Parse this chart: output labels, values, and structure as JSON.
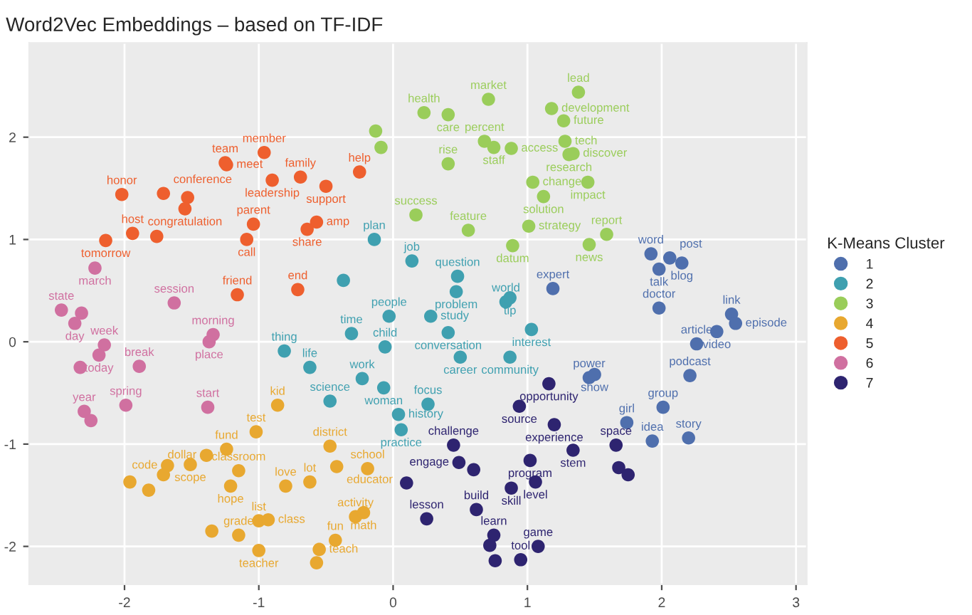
{
  "chart_data": {
    "type": "scatter",
    "title": "Word2Vec Embeddings – based on TF-IDF",
    "legend_title": "K-Means Cluster",
    "legend": "right",
    "grid": true,
    "marker": "circle",
    "xlim": [
      -2.71,
      3.08
    ],
    "ylim": [
      -2.37,
      2.92
    ],
    "xticks": [
      -2,
      -1,
      0,
      1,
      2,
      3
    ],
    "yticks": [
      -2,
      -1,
      0,
      1,
      2
    ],
    "series": [
      {
        "name": "1",
        "color": "#4f6fad",
        "x": [
          1.19,
          1.92,
          2.06,
          2.15,
          1.98,
          1.98,
          2.52,
          2.55,
          2.41,
          2.26,
          2.21,
          1.46,
          1.5,
          2.01,
          1.74,
          1.93,
          2.2
        ],
        "values": [
          0.52,
          0.86,
          0.82,
          0.77,
          0.71,
          0.33,
          0.27,
          0.18,
          0.1,
          -0.02,
          -0.33,
          -0.35,
          -0.32,
          -0.64,
          -0.79,
          -0.97,
          -0.94
        ],
        "value_labels": [
          "expert",
          "word",
          "post",
          "blog",
          "talk",
          "doctor",
          "link",
          "episode",
          "video",
          "article",
          "podcast",
          "power",
          "show",
          "group",
          "girl",
          "idea",
          "story"
        ]
      },
      {
        "name": "2",
        "color": "#3fa0b0",
        "x": [
          -0.14,
          -0.37,
          -0.03,
          0.14,
          0.48,
          0.47,
          0.84,
          0.87,
          0.28,
          0.41,
          1.03,
          -0.06,
          0.5,
          0.87,
          -0.07,
          0.26,
          0.04,
          0.06,
          -0.81,
          -0.31,
          -0.62,
          -0.23,
          -0.47
        ],
        "values": [
          1.0,
          0.6,
          0.25,
          0.79,
          0.64,
          0.49,
          0.39,
          0.43,
          0.25,
          0.09,
          0.12,
          -0.05,
          -0.15,
          -0.15,
          -0.45,
          -0.61,
          -0.71,
          -0.86,
          -0.09,
          0.08,
          -0.25,
          -0.36,
          -0.58
        ],
        "value_labels": [
          "plan",
          null,
          "people",
          "job",
          "question",
          "problem",
          "world",
          "tip",
          "study",
          "conversation",
          "interest",
          "child",
          "career",
          "community",
          "woman",
          "focus",
          "history",
          "practice",
          "thing",
          "time",
          "life",
          "work",
          "science"
        ]
      },
      {
        "name": "3",
        "color": "#9acd5a",
        "x": [
          -0.13,
          -0.09,
          0.23,
          0.41,
          0.71,
          1.18,
          1.27,
          1.38,
          0.68,
          0.75,
          0.88,
          1.28,
          1.31,
          1.34,
          0.41,
          1.04,
          1.45,
          1.12,
          0.17,
          1.01,
          0.56,
          1.59,
          0.89,
          1.46
        ],
        "values": [
          2.06,
          1.9,
          2.24,
          2.22,
          2.37,
          2.28,
          2.16,
          2.44,
          1.96,
          1.9,
          1.89,
          1.96,
          1.83,
          1.84,
          1.74,
          1.56,
          1.56,
          1.42,
          1.24,
          1.13,
          1.09,
          1.05,
          0.94,
          0.95
        ],
        "value_labels": [
          null,
          null,
          "health",
          "care",
          "market",
          "development",
          "future",
          "lead",
          "percent",
          "staff",
          "access",
          "tech",
          "research",
          "discover",
          "rise",
          "change",
          "impact",
          "solution",
          "success",
          "strategy",
          "feature",
          "report",
          "datum",
          "news"
        ]
      },
      {
        "name": "4",
        "color": "#e8a830",
        "x": [
          -0.86,
          -1.02,
          -1.24,
          -1.39,
          -1.51,
          -1.68,
          -1.71,
          -1.96,
          -1.82,
          -1.15,
          -1.21,
          -0.8,
          -0.62,
          -0.47,
          -0.42,
          -0.19,
          -1.35,
          -1.15,
          -1.0,
          -0.93,
          -1.0,
          -0.55,
          -0.57,
          -0.43,
          -0.28,
          -0.22
        ],
        "values": [
          -0.62,
          -0.88,
          -1.05,
          -1.11,
          -1.2,
          -1.21,
          -1.3,
          -1.37,
          -1.45,
          -1.26,
          -1.41,
          -1.41,
          -1.37,
          -1.02,
          -1.22,
          -1.24,
          -1.85,
          -1.89,
          -1.75,
          -1.74,
          -2.04,
          -2.03,
          -2.16,
          -1.94,
          -1.71,
          -1.67
        ],
        "value_labels": [
          "kid",
          "test",
          "fund",
          "dollar",
          "scope",
          "code",
          null,
          null,
          null,
          "classroom",
          "hope",
          "love",
          "lot",
          "district",
          "educator",
          "school",
          null,
          "grade",
          "list",
          "class",
          "teacher",
          "teach",
          null,
          "fun",
          "activity",
          "math"
        ]
      },
      {
        "name": "5",
        "color": "#ee5f2e",
        "x": [
          -2.14,
          -1.94,
          -1.76,
          -2.02,
          -1.71,
          -1.53,
          -1.55,
          -1.25,
          -1.24,
          -0.96,
          -0.9,
          -0.69,
          -0.5,
          -0.25,
          -1.04,
          -1.09,
          -0.57,
          -0.64,
          -1.16,
          -0.71
        ],
        "values": [
          0.99,
          1.06,
          1.03,
          1.44,
          1.45,
          1.41,
          1.3,
          1.75,
          1.73,
          1.85,
          1.58,
          1.61,
          1.52,
          1.66,
          1.15,
          1.0,
          1.17,
          1.1,
          0.46,
          0.51
        ],
        "value_labels": [
          "tomorrow",
          "host",
          null,
          "honor",
          "conference",
          null,
          "congratulation",
          "team",
          "meet",
          "member",
          "leadership",
          "family",
          "support",
          "help",
          "parent",
          "call",
          "amp",
          "share",
          "friend",
          "end"
        ]
      },
      {
        "name": "6",
        "color": "#d070a0",
        "x": [
          -2.22,
          -2.47,
          -2.32,
          -1.63,
          -2.37,
          -2.15,
          -2.19,
          -2.33,
          -1.89,
          -1.34,
          -1.37,
          -1.99,
          -2.3,
          -2.25,
          -1.38
        ],
        "values": [
          0.72,
          0.31,
          0.28,
          0.38,
          0.18,
          -0.03,
          -0.13,
          -0.25,
          -0.24,
          0.07,
          0.0,
          -0.62,
          -0.68,
          -0.77,
          -0.64
        ],
        "value_labels": [
          "march",
          "state",
          null,
          "session",
          "day",
          "week",
          "today",
          null,
          "break",
          "morning",
          "place",
          "spring",
          "year",
          null,
          "start"
        ]
      },
      {
        "name": "7",
        "color": "#2e2470",
        "x": [
          1.16,
          0.94,
          1.2,
          0.45,
          0.49,
          0.6,
          1.02,
          1.06,
          0.88,
          1.34,
          1.66,
          1.68,
          1.75,
          0.1,
          0.25,
          0.62,
          0.75,
          0.72,
          0.76,
          0.95,
          1.08
        ],
        "values": [
          -0.41,
          -0.63,
          -0.81,
          -1.01,
          -1.18,
          -1.25,
          -1.16,
          -1.37,
          -1.43,
          -1.06,
          -1.01,
          -1.23,
          -1.3,
          -1.38,
          -1.73,
          -1.64,
          -1.89,
          -1.99,
          -2.14,
          -2.13,
          -2.0
        ],
        "value_labels": [
          "opportunity",
          "source",
          "experience",
          "challenge",
          "engage",
          null,
          "program",
          "level",
          "skill",
          "stem",
          "space",
          null,
          null,
          null,
          "lesson",
          "build",
          "learn",
          null,
          null,
          "tool",
          "game"
        ]
      }
    ]
  }
}
